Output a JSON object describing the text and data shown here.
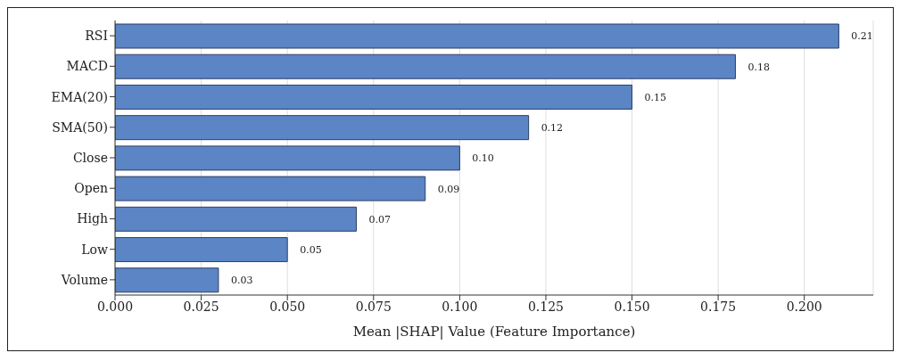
{
  "chart_data": {
    "type": "bar",
    "orientation": "horizontal",
    "xlabel": "Mean |SHAP| Value (Feature Importance)",
    "categories": [
      "RSI",
      "MACD",
      "EMA(20)",
      "SMA(50)",
      "Close",
      "Open",
      "High",
      "Low",
      "Volume"
    ],
    "values": [
      0.21,
      0.18,
      0.15,
      0.12,
      0.1,
      0.09,
      0.07,
      0.05,
      0.03
    ],
    "color": "#5b85c4",
    "value_labels": [
      "0.21",
      "0.18",
      "0.15",
      "0.12",
      "0.10",
      "0.09",
      "0.07",
      "0.05",
      "0.03"
    ],
    "xlim": [
      0,
      0.22
    ],
    "xticks": [
      {
        "value": 0,
        "label": "0.000"
      },
      {
        "value": 0.025,
        "label": "0.025"
      },
      {
        "value": 0.05,
        "label": "0.050"
      },
      {
        "value": 0.075,
        "label": "0.075"
      },
      {
        "value": 0.1,
        "label": "0.100"
      },
      {
        "value": 0.125,
        "label": "0.125"
      },
      {
        "value": 0.15,
        "label": "0.150"
      },
      {
        "value": 0.175,
        "label": "0.175"
      },
      {
        "value": 0.2,
        "label": "0.200"
      }
    ],
    "grid": "x"
  }
}
